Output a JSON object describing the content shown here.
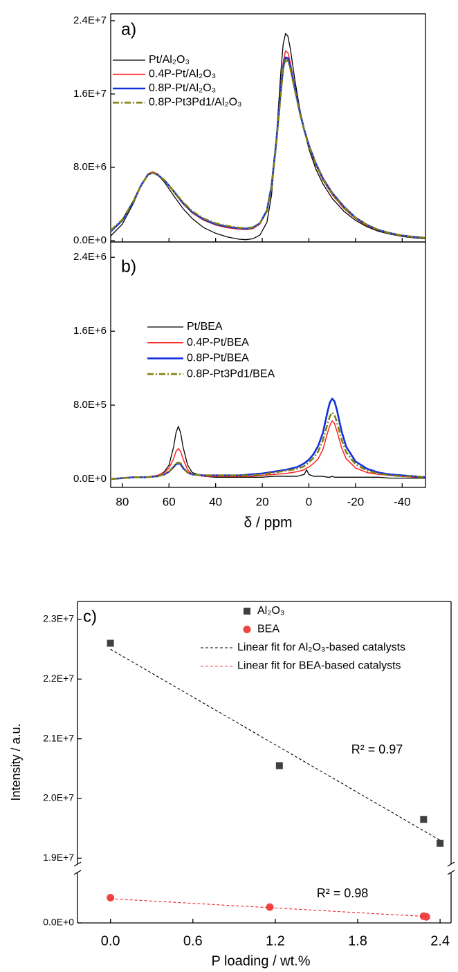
{
  "chart_data": [
    {
      "type": "line",
      "panel_label": "a)",
      "x": [
        85,
        80,
        75,
        72,
        69,
        67,
        65,
        62,
        58,
        54,
        50,
        45,
        40,
        35,
        30,
        27,
        24,
        21,
        18,
        16,
        14,
        12,
        11,
        10,
        9,
        8,
        6,
        4,
        2,
        0,
        -3,
        -6,
        -10,
        -15,
        -20,
        -25,
        -30,
        -35,
        -40,
        -45,
        -50
      ],
      "series": [
        {
          "name": "Pt/Al₂O₃",
          "color": "#000000",
          "width": 1.3,
          "values": [
            500000.0,
            1800000.0,
            4200000.0,
            6000000.0,
            7200000.0,
            7400000.0,
            7200000.0,
            6400000.0,
            4900000.0,
            3500000.0,
            2400000.0,
            1400000.0,
            800000.0,
            400000.0,
            150000.0,
            100000.0,
            200000.0,
            600000.0,
            2000000.0,
            5000000.0,
            11000000.0,
            18500000.0,
            21500000.0,
            22600000.0,
            22300000.0,
            21000000.0,
            17500000.0,
            14500000.0,
            12000000.0,
            10000000.0,
            7800000.0,
            6200000.0,
            4600000.0,
            3200000.0,
            2200000.0,
            1500000.0,
            1000000.0,
            700000.0,
            450000.0,
            300000.0,
            200000.0
          ]
        },
        {
          "name": "0.4P-Pt/Al₂O₃",
          "color": "#ff2020",
          "width": 1.5,
          "values": [
            1000000.0,
            2200000.0,
            4500000.0,
            6100000.0,
            7300000.0,
            7500000.0,
            7300000.0,
            6600000.0,
            5300000.0,
            4000000.0,
            3000000.0,
            2200000.0,
            1700000.0,
            1400000.0,
            1250000.0,
            1200000.0,
            1300000.0,
            1800000.0,
            3200000.0,
            6000000.0,
            11000000.0,
            17000000.0,
            19500000.0,
            20700000.0,
            20500000.0,
            19500000.0,
            16800000.0,
            14200000.0,
            12000000.0,
            10200000.0,
            8200000.0,
            6600000.0,
            5000000.0,
            3500000.0,
            2400000.0,
            1600000.0,
            1100000.0,
            750000.0,
            500000.0,
            350000.0,
            250000.0
          ]
        },
        {
          "name": "0.8P-Pt/Al₂O₃",
          "color": "#1030e0",
          "width": 2.6,
          "values": [
            1000000.0,
            2200000.0,
            4400000.0,
            6000000.0,
            7200000.0,
            7400000.0,
            7200000.0,
            6600000.0,
            5400000.0,
            4100000.0,
            3100000.0,
            2300000.0,
            1800000.0,
            1500000.0,
            1350000.0,
            1300000.0,
            1400000.0,
            1900000.0,
            3300000.0,
            6000000.0,
            10800000.0,
            16500000.0,
            19000000.0,
            20000000.0,
            19900000.0,
            19000000.0,
            16600000.0,
            14200000.0,
            12100000.0,
            10400000.0,
            8400000.0,
            6800000.0,
            5200000.0,
            3700000.0,
            2500000.0,
            1700000.0,
            1150000.0,
            800000.0,
            550000.0,
            400000.0,
            300000.0
          ]
        },
        {
          "name": "0.8P-Pt3Pd1/Al₂O₃",
          "color": "#808010",
          "width": 2.6,
          "dash": "9,3,2,3",
          "values": [
            1100000.0,
            2300000.0,
            4400000.0,
            6000000.0,
            7200000.0,
            7400000.0,
            7200000.0,
            6600000.0,
            5400000.0,
            4200000.0,
            3200000.0,
            2400000.0,
            1900000.0,
            1600000.0,
            1400000.0,
            1350000.0,
            1450000.0,
            1900000.0,
            3200000.0,
            5800000.0,
            10500000.0,
            16200000.0,
            18700000.0,
            19700000.0,
            19600000.0,
            18800000.0,
            16400000.0,
            14000000.0,
            12000000.0,
            10300000.0,
            8300000.0,
            6700000.0,
            5100000.0,
            3600000.0,
            2500000.0,
            1700000.0,
            1150000.0,
            800000.0,
            550000.0,
            400000.0,
            300000.0
          ]
        }
      ],
      "xlim": [
        85,
        -50
      ],
      "ylim": [
        -150000.0,
        24750000.0
      ],
      "yticks": [
        {
          "value": 0,
          "label": "0.0E+0"
        },
        {
          "value": 8000000.0,
          "label": "8.0E+6"
        },
        {
          "value": 16000000.0,
          "label": "1.6E+7"
        },
        {
          "value": 24000000.0,
          "label": "2.4E+7"
        }
      ]
    },
    {
      "type": "line",
      "panel_label": "b)",
      "xlabel": "δ / ppm",
      "x": [
        85,
        80,
        75,
        70,
        65,
        62,
        60,
        58,
        57,
        56,
        55,
        54,
        52,
        50,
        45,
        40,
        35,
        30,
        25,
        20,
        15,
        10,
        5,
        2,
        1,
        0,
        -2,
        -4,
        -6,
        -8,
        -9,
        -10,
        -11,
        -12,
        -14,
        -16,
        -20,
        -25,
        -30,
        -35,
        -40,
        -45,
        -50
      ],
      "series": [
        {
          "name": "Pt/BEA",
          "color": "#000000",
          "width": 1.3,
          "values": [
            0,
            10000.0,
            20000.0,
            20000.0,
            30000.0,
            80000.0,
            150000.0,
            350000.0,
            500000.0,
            570000.0,
            500000.0,
            350000.0,
            150000.0,
            70000.0,
            30000.0,
            20000.0,
            20000.0,
            20000.0,
            20000.0,
            20000.0,
            30000.0,
            30000.0,
            30000.0,
            50000.0,
            100000.0,
            50000.0,
            30000.0,
            30000.0,
            30000.0,
            20000.0,
            20000.0,
            30000.0,
            20000.0,
            20000.0,
            20000.0,
            20000.0,
            20000.0,
            20000.0,
            20000.0,
            10000.0,
            10000.0,
            10000.0,
            10000.0
          ]
        },
        {
          "name": "0.4P-Pt/BEA",
          "color": "#ff2020",
          "width": 1.5,
          "values": [
            0,
            10000.0,
            20000.0,
            20000.0,
            40000.0,
            70000.0,
            120000.0,
            220000.0,
            300000.0,
            330000.0,
            300000.0,
            220000.0,
            100000.0,
            50000.0,
            30000.0,
            30000.0,
            30000.0,
            30000.0,
            30000.0,
            40000.0,
            50000.0,
            60000.0,
            80000.0,
            100000.0,
            120000.0,
            130000.0,
            170000.0,
            220000.0,
            320000.0,
            500000.0,
            580000.0,
            630000.0,
            600000.0,
            520000.0,
            340000.0,
            220000.0,
            120000.0,
            70000.0,
            50000.0,
            40000.0,
            30000.0,
            20000.0,
            20000.0
          ]
        },
        {
          "name": "0.8P-Pt/BEA",
          "color": "#1030e0",
          "width": 2.6,
          "values": [
            0,
            10000.0,
            20000.0,
            20000.0,
            30000.0,
            50000.0,
            80000.0,
            130000.0,
            160000.0,
            170000.0,
            160000.0,
            120000.0,
            70000.0,
            50000.0,
            40000.0,
            40000.0,
            40000.0,
            40000.0,
            50000.0,
            60000.0,
            80000.0,
            100000.0,
            130000.0,
            170000.0,
            190000.0,
            210000.0,
            270000.0,
            360000.0,
            500000.0,
            730000.0,
            830000.0,
            870000.0,
            840000.0,
            750000.0,
            520000.0,
            350000.0,
            190000.0,
            110000.0,
            70000.0,
            50000.0,
            40000.0,
            30000.0,
            20000.0
          ]
        },
        {
          "name": "0.8P-Pt3Pd1/BEA",
          "color": "#808010",
          "width": 2.6,
          "dash": "9,3,2,3",
          "values": [
            0,
            10000.0,
            20000.0,
            20000.0,
            30000.0,
            50000.0,
            80000.0,
            140000.0,
            170000.0,
            180000.0,
            170000.0,
            130000.0,
            70000.0,
            50000.0,
            40000.0,
            40000.0,
            40000.0,
            40000.0,
            40000.0,
            50000.0,
            70000.0,
            90000.0,
            110000.0,
            140000.0,
            160000.0,
            180000.0,
            230000.0,
            300000.0,
            420000.0,
            600000.0,
            680000.0,
            720000.0,
            690000.0,
            620000.0,
            430000.0,
            290000.0,
            160000.0,
            90000.0,
            60000.0,
            40000.0,
            30000.0,
            30000.0,
            20000.0
          ]
        }
      ],
      "xlim": [
        85,
        -50
      ],
      "ylim": [
        -90000.0,
        2566000.0
      ],
      "xticks": [
        80,
        60,
        40,
        20,
        0,
        -20,
        -40
      ],
      "yticks": [
        {
          "value": 0,
          "label": "0.0E+0"
        },
        {
          "value": 800000.0,
          "label": "8.0E+5"
        },
        {
          "value": 1600000.0,
          "label": "1.6E+6"
        },
        {
          "value": 2400000.0,
          "label": "2.4E+6"
        }
      ]
    },
    {
      "type": "scatter",
      "panel_label": "c)",
      "xlabel": "P loading / wt.%",
      "ylabel": "Intensity / a.u.",
      "series": [
        {
          "name": "Al₂O₃",
          "color": "#404040",
          "marker": "square",
          "x": [
            0,
            1.23,
            2.28,
            2.4
          ],
          "values": [
            22600000.0,
            20550000.0,
            19650000.0,
            19250000.0
          ]
        },
        {
          "name": "BEA",
          "color": "#f04545",
          "marker": "circle",
          "x": [
            0,
            1.16,
            2.28,
            2.3
          ],
          "values": [
            750000.0,
            470000.0,
            200000.0,
            180000.0
          ]
        },
        {
          "name": "Linear fit for Al₂O₃-based catalysts",
          "color": "#000000",
          "dash": "4,3",
          "x": [
            0,
            2.4
          ],
          "values": [
            22500000.0,
            19300000.0
          ]
        },
        {
          "name": "Linear fit for BEA-based catalysts",
          "color": "#f02020",
          "dash": "4,3",
          "x": [
            0,
            2.3
          ],
          "values": [
            720000.0,
            190000.0
          ]
        }
      ],
      "annotations": [
        "R² = 0.97",
        "R² = 0.98"
      ],
      "xlim": [
        -0.24,
        2.48
      ],
      "ylim": [
        [
          0,
          1500000.0
        ],
        [
          18900000.0,
          23300000.0
        ]
      ],
      "xticks": [
        {
          "value": 0,
          "label": "0.0"
        },
        {
          "value": 0.6,
          "label": "0.6"
        },
        {
          "value": 1.2,
          "label": "1.2"
        },
        {
          "value": 1.8,
          "label": "1.8"
        },
        {
          "value": 2.4,
          "label": "2.4"
        }
      ],
      "yticks": [
        {
          "value": 0,
          "label": "0.0E+0"
        },
        {
          "value": 19000000.0,
          "label": "1.9E+7"
        },
        {
          "value": 20000000.0,
          "label": "2.0E+7"
        },
        {
          "value": 21000000.0,
          "label": "2.1E+7"
        },
        {
          "value": 22000000.0,
          "label": "2.2E+7"
        },
        {
          "value": 23000000.0,
          "label": "2.3E+7"
        }
      ]
    }
  ]
}
